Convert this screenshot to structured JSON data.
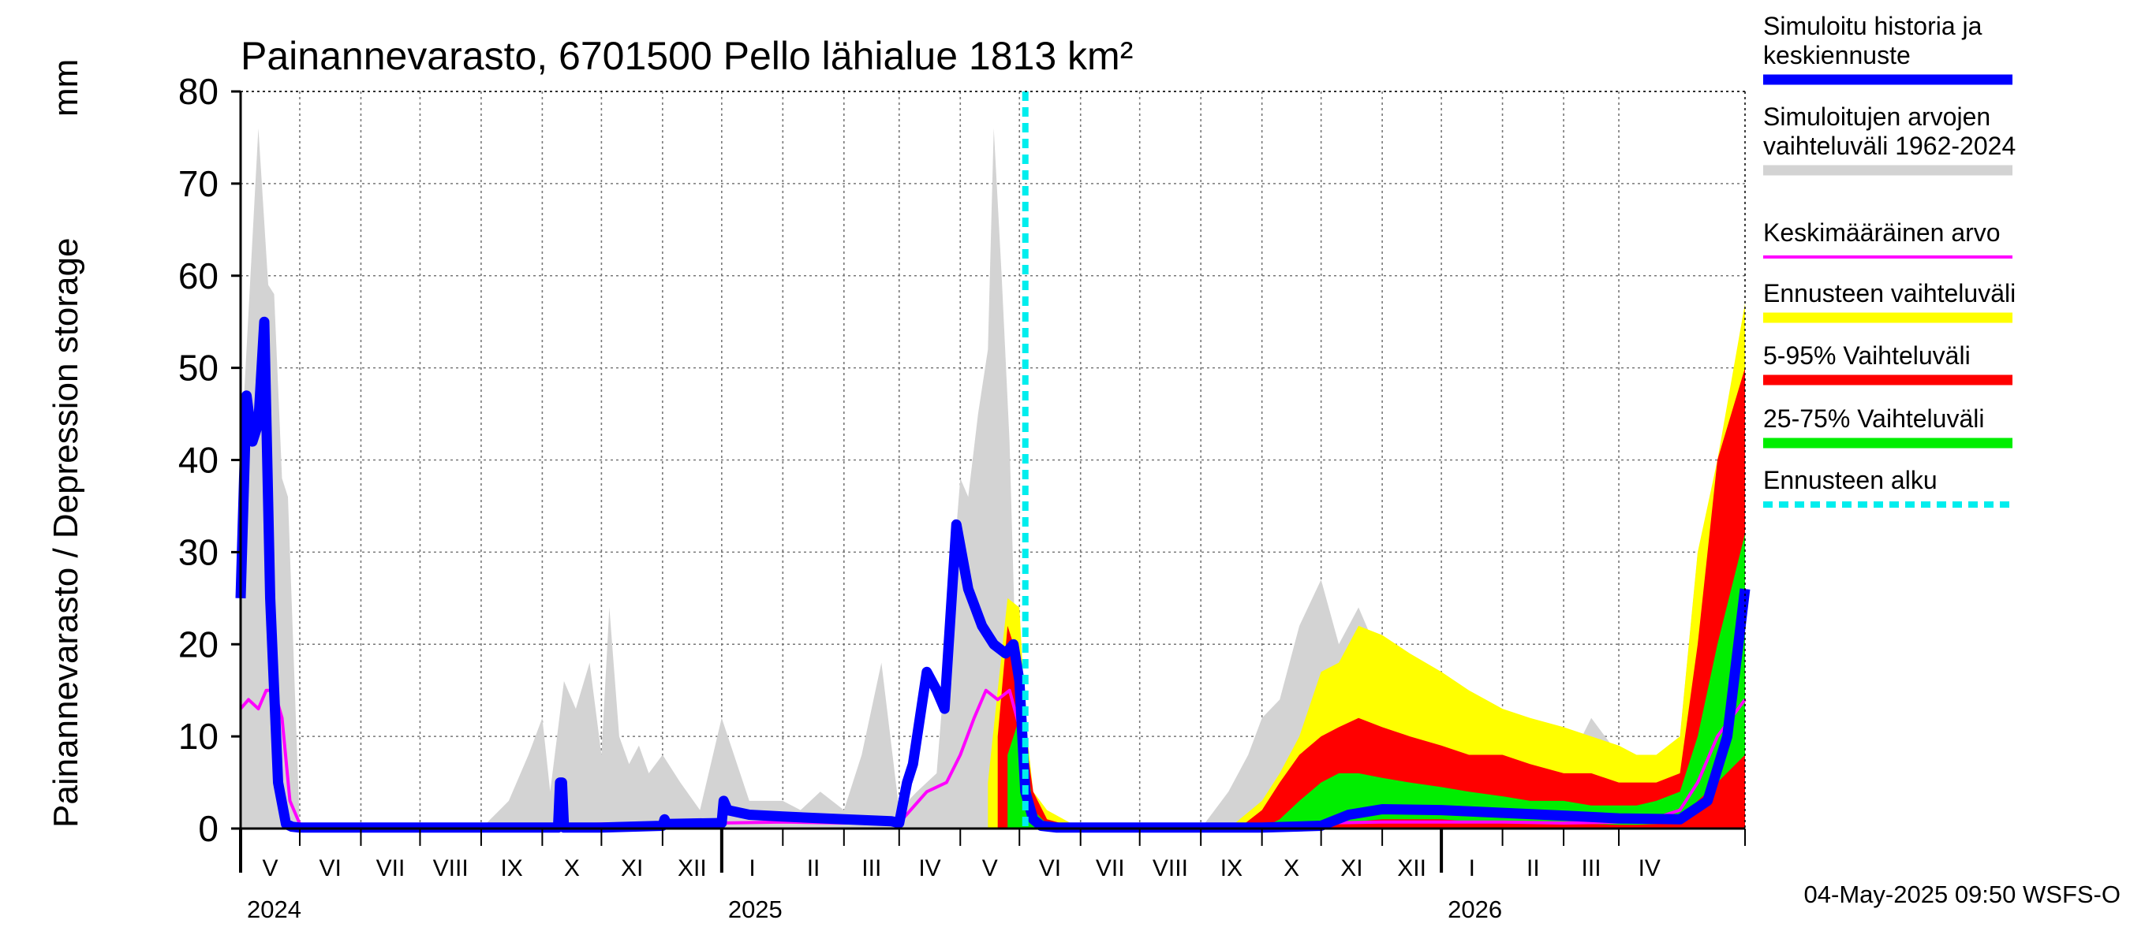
{
  "chart_data": {
    "type": "area",
    "title": "Painannevarasto, 6701500 Pello lähialue 1813 km²",
    "ylabel": "Painannevarasto / Depression storage",
    "yunit": "mm",
    "ylim": [
      0,
      80
    ],
    "yticks": [
      0,
      10,
      20,
      30,
      40,
      50,
      60,
      70,
      80
    ],
    "xlim": [
      "2024-04-01",
      "2026-05-04"
    ],
    "grid": true,
    "legend_position": "right",
    "forecast_start": "2025-05-04",
    "timestamp": "04-May-2025 09:50 WSFS-O",
    "months": [
      {
        "label": "V",
        "start": "2024-04-01",
        "end": "2024-05-01"
      },
      {
        "label": "VI",
        "start": "2024-05-01",
        "end": "2024-06-01"
      },
      {
        "label": "VII",
        "start": "2024-06-01",
        "end": "2024-07-01"
      },
      {
        "label": "VIII",
        "start": "2024-07-01",
        "end": "2024-08-01"
      },
      {
        "label": "IX",
        "start": "2024-08-01",
        "end": "2024-09-01"
      },
      {
        "label": "X",
        "start": "2024-09-01",
        "end": "2024-10-01"
      },
      {
        "label": "XI",
        "start": "2024-10-01",
        "end": "2024-11-01"
      },
      {
        "label": "XII",
        "start": "2024-11-01",
        "end": "2024-12-01"
      },
      {
        "label": "I",
        "start": "2024-12-01",
        "end": "2025-01-01"
      },
      {
        "label": "II",
        "start": "2025-01-01",
        "end": "2025-02-01"
      },
      {
        "label": "III",
        "start": "2025-02-01",
        "end": "2025-03-01"
      },
      {
        "label": "IV",
        "start": "2025-03-01",
        "end": "2025-04-01"
      },
      {
        "label": "V",
        "start": "2025-04-01",
        "end": "2025-05-01"
      },
      {
        "label": "VI",
        "start": "2025-05-01",
        "end": "2025-06-01"
      },
      {
        "label": "VII",
        "start": "2025-06-01",
        "end": "2025-07-01"
      },
      {
        "label": "VIII",
        "start": "2025-07-01",
        "end": "2025-08-01"
      },
      {
        "label": "IX",
        "start": "2025-08-01",
        "end": "2025-09-01"
      },
      {
        "label": "X",
        "start": "2025-09-01",
        "end": "2025-10-01"
      },
      {
        "label": "XI",
        "start": "2025-10-01",
        "end": "2025-11-01"
      },
      {
        "label": "XII",
        "start": "2025-11-01",
        "end": "2025-12-01"
      },
      {
        "label": "I",
        "start": "2025-12-01",
        "end": "2026-01-01"
      },
      {
        "label": "II",
        "start": "2026-01-01",
        "end": "2026-02-01"
      },
      {
        "label": "III",
        "start": "2026-02-01",
        "end": "2026-03-01"
      },
      {
        "label": "IV",
        "start": "2026-03-01",
        "end": "2026-04-01"
      }
    ],
    "years": [
      {
        "label": "2024",
        "date": "2024-04-01"
      },
      {
        "label": "2025",
        "date": "2024-12-01"
      },
      {
        "label": "2026",
        "date": "2025-12-01"
      }
    ],
    "legend": [
      {
        "label": "Simuloitu historia ja keskiennuste",
        "color": "#0000ff",
        "style": "thick"
      },
      {
        "label": "Simuloitujen arvojen vaihteluväli 1962-2024",
        "color": "#d3d3d3",
        "style": "thick"
      },
      {
        "label": "Keskimääräinen arvo",
        "color": "#ff00ff",
        "style": "thin"
      },
      {
        "label": "Ennusteen vaihteluväli",
        "color": "#ffff00",
        "style": "thick"
      },
      {
        "label": "5-95% Vaihteluväli",
        "color": "#ff0000",
        "style": "thick"
      },
      {
        "label": "25-75% Vaihteluväli",
        "color": "#00ee00",
        "style": "thick"
      },
      {
        "label": "Ennusteen alku",
        "color": "#00eeee",
        "style": "dotted"
      }
    ],
    "series": [
      {
        "name": "Simulaatioiden vaihteluväli 1962-2024",
        "kind": "band",
        "color": "#d3d3d3",
        "x": [
          "2024-04-01",
          "2024-04-10",
          "2024-04-15",
          "2024-04-18",
          "2024-04-22",
          "2024-04-25",
          "2024-05-01",
          "2024-05-05",
          "2024-05-10",
          "2024-05-12",
          "2024-05-20",
          "2024-06-01",
          "2024-07-01",
          "2024-08-01",
          "2024-08-15",
          "2024-08-25",
          "2024-09-01",
          "2024-09-05",
          "2024-09-12",
          "2024-09-18",
          "2024-09-25",
          "2024-10-01",
          "2024-10-05",
          "2024-10-10",
          "2024-10-15",
          "2024-10-20",
          "2024-10-25",
          "2024-11-01",
          "2024-11-10",
          "2024-11-20",
          "2024-12-01",
          "2024-12-15",
          "2025-01-01",
          "2025-01-10",
          "2025-01-20",
          "2025-02-01",
          "2025-02-10",
          "2025-02-20",
          "2025-03-01",
          "2025-03-10",
          "2025-03-20",
          "2025-04-01",
          "2025-04-05",
          "2025-04-10",
          "2025-04-15",
          "2025-04-18",
          "2025-04-22",
          "2025-04-26",
          "2025-05-01",
          "2025-05-05",
          "2025-05-10",
          "2025-05-15",
          "2025-05-20",
          "2025-06-01",
          "2025-07-01",
          "2025-08-01",
          "2025-08-15",
          "2025-08-25",
          "2025-09-01",
          "2025-09-10",
          "2025-09-20",
          "2025-10-01",
          "2025-10-10",
          "2025-10-20",
          "2025-11-01",
          "2025-11-10",
          "2025-11-20",
          "2025-12-01",
          "2025-12-15",
          "2026-01-01",
          "2026-01-15",
          "2026-02-01",
          "2026-02-15",
          "2026-03-01",
          "2026-03-10",
          "2026-03-20",
          "2026-04-01",
          "2026-04-10",
          "2026-04-20",
          "2026-05-04"
        ],
        "low": [
          0,
          0,
          0,
          0,
          0,
          0,
          0,
          0,
          0,
          0,
          0,
          0,
          0,
          0,
          0,
          0,
          0,
          0,
          0,
          0,
          0,
          0,
          0,
          0,
          0,
          0,
          0,
          0,
          0,
          0,
          0,
          0,
          0,
          0,
          0,
          0,
          0,
          0,
          0,
          0,
          0,
          0,
          0,
          0,
          0,
          0,
          0,
          0,
          0,
          0,
          0,
          0,
          0,
          0,
          0,
          0,
          0,
          0,
          0,
          0,
          0,
          0,
          0,
          0,
          0,
          0,
          0,
          0,
          0,
          0,
          0,
          0,
          0,
          0,
          0,
          0,
          0,
          0,
          0,
          0
        ],
        "high": [
          40,
          76,
          59,
          58,
          38,
          36,
          0,
          0,
          0,
          0,
          0,
          0,
          0,
          0,
          3,
          8,
          12,
          4,
          16,
          13,
          18,
          8,
          24,
          10,
          7,
          9,
          6,
          8,
          5,
          2,
          12,
          3,
          3,
          2,
          4,
          2,
          8,
          18,
          2,
          4,
          6,
          38,
          36,
          45,
          52,
          76,
          60,
          42,
          4,
          0,
          0,
          0,
          0,
          0,
          0,
          0,
          4,
          8,
          12,
          14,
          22,
          27,
          20,
          24,
          18,
          14,
          10,
          12,
          6,
          3,
          8,
          6,
          12,
          8,
          4,
          2,
          10,
          30,
          28,
          45
        ]
      },
      {
        "name": "Ennusteen vaihteluväli",
        "kind": "band",
        "color": "#ffff00",
        "x": [
          "2025-04-15",
          "2025-04-20",
          "2025-04-25",
          "2025-05-01",
          "2025-05-04",
          "2025-05-08",
          "2025-05-15",
          "2025-06-01",
          "2025-08-15",
          "2025-09-01",
          "2025-09-10",
          "2025-09-20",
          "2025-10-01",
          "2025-10-10",
          "2025-10-20",
          "2025-11-01",
          "2025-11-15",
          "2025-12-01",
          "2025-12-15",
          "2026-01-01",
          "2026-01-15",
          "2026-02-01",
          "2026-02-15",
          "2026-03-01",
          "2026-03-10",
          "2026-03-20",
          "2026-04-01",
          "2026-04-10",
          "2026-04-20",
          "2026-05-04"
        ],
        "low": [
          0,
          0,
          0,
          0,
          0,
          0,
          0,
          0,
          0,
          0,
          0,
          0,
          0,
          0,
          0,
          0,
          0,
          0,
          0,
          0,
          0,
          0,
          0,
          0,
          0,
          0,
          0,
          0,
          0,
          0
        ],
        "high": [
          5,
          15,
          25,
          24,
          12,
          4,
          2,
          0,
          0,
          3,
          6,
          10,
          17,
          18,
          22,
          21,
          19,
          17,
          15,
          13,
          12,
          11,
          10,
          9,
          8,
          8,
          10,
          30,
          40,
          57
        ]
      },
      {
        "name": "5-95% Vaihteluväli",
        "kind": "band",
        "color": "#ff0000",
        "x": [
          "2025-04-20",
          "2025-04-25",
          "2025-05-01",
          "2025-05-04",
          "2025-05-08",
          "2025-05-15",
          "2025-06-01",
          "2025-08-20",
          "2025-09-01",
          "2025-09-10",
          "2025-09-20",
          "2025-10-01",
          "2025-10-10",
          "2025-10-20",
          "2025-11-01",
          "2025-11-15",
          "2025-12-01",
          "2025-12-15",
          "2026-01-01",
          "2026-01-15",
          "2026-02-01",
          "2026-02-15",
          "2026-03-01",
          "2026-03-10",
          "2026-03-20",
          "2026-04-01",
          "2026-04-10",
          "2026-04-20",
          "2026-05-04"
        ],
        "low": [
          0,
          0,
          0,
          0,
          0,
          0,
          0,
          0,
          0,
          0,
          0,
          0,
          0,
          0,
          0,
          0,
          0,
          0,
          0,
          0,
          0,
          0,
          0,
          0,
          0,
          0,
          0,
          0,
          0
        ],
        "high": [
          10,
          22,
          18,
          10,
          4,
          1,
          0,
          0,
          2,
          5,
          8,
          10,
          11,
          12,
          11,
          10,
          9,
          8,
          8,
          7,
          6,
          6,
          5,
          5,
          5,
          6,
          20,
          40,
          50
        ]
      },
      {
        "name": "25-75% Vaihteluväli",
        "kind": "band",
        "color": "#00ee00",
        "x": [
          "2025-04-25",
          "2025-05-01",
          "2025-05-04",
          "2025-05-08",
          "2025-05-15",
          "2025-06-01",
          "2025-09-01",
          "2025-09-10",
          "2025-09-20",
          "2025-10-01",
          "2025-10-10",
          "2025-10-20",
          "2025-11-01",
          "2025-11-15",
          "2025-12-01",
          "2025-12-15",
          "2026-01-01",
          "2026-01-15",
          "2026-02-01",
          "2026-02-15",
          "2026-03-01",
          "2026-03-10",
          "2026-03-20",
          "2026-04-01",
          "2026-04-10",
          "2026-04-20",
          "2026-05-04"
        ],
        "low": [
          0,
          0,
          0,
          0,
          0,
          0,
          0,
          0,
          0,
          0,
          0.5,
          0.8,
          1,
          1,
          1,
          0.8,
          0.7,
          0.6,
          0.5,
          0.5,
          0.4,
          0.4,
          0.5,
          1,
          3,
          5,
          8
        ],
        "high": [
          8,
          12,
          9,
          2,
          0.5,
          0,
          0,
          1,
          3,
          5,
          6,
          6,
          5.5,
          5,
          4.5,
          4,
          3.5,
          3,
          3,
          2.5,
          2.5,
          2.5,
          3,
          4,
          10,
          20,
          32
        ]
      },
      {
        "name": "Keskimääräinen arvo",
        "kind": "line",
        "color": "#ff00ff",
        "x": [
          "2024-04-01",
          "2024-04-05",
          "2024-04-10",
          "2024-04-14",
          "2024-04-18",
          "2024-04-22",
          "2024-04-26",
          "2024-05-01",
          "2024-05-05",
          "2024-06-01",
          "2024-08-01",
          "2024-09-01",
          "2024-10-01",
          "2024-11-01",
          "2024-12-01",
          "2025-01-01",
          "2025-02-01",
          "2025-03-01",
          "2025-03-15",
          "2025-03-25",
          "2025-04-01",
          "2025-04-08",
          "2025-04-14",
          "2025-04-20",
          "2025-04-26",
          "2025-05-01",
          "2025-05-05",
          "2025-05-10",
          "2025-05-15",
          "2025-06-01",
          "2025-08-01",
          "2025-09-01",
          "2025-10-01",
          "2025-11-01",
          "2025-12-01",
          "2026-01-01",
          "2026-02-01",
          "2026-03-01",
          "2026-03-15",
          "2026-04-01",
          "2026-04-10",
          "2026-04-20",
          "2026-05-04"
        ],
        "values": [
          13,
          14,
          13,
          15,
          15,
          12,
          3,
          0.5,
          0.3,
          0.2,
          0.2,
          0.3,
          0.5,
          0.6,
          0.6,
          0.7,
          0.6,
          0.6,
          4,
          5,
          8,
          12,
          15,
          14,
          15,
          11,
          3,
          0.5,
          0.3,
          0.2,
          0.2,
          0.3,
          0.6,
          0.7,
          0.7,
          0.7,
          0.6,
          0.7,
          0.8,
          2,
          5,
          10,
          14
        ]
      },
      {
        "name": "Simuloitu historia ja keskiennuste",
        "kind": "line",
        "color": "#0000ff",
        "x": [
          "2024-04-01",
          "2024-04-04",
          "2024-04-07",
          "2024-04-10",
          "2024-04-13",
          "2024-04-16",
          "2024-04-20",
          "2024-04-24",
          "2024-04-27",
          "2024-05-01",
          "2024-06-01",
          "2024-08-01",
          "2024-09-01",
          "2024-09-09",
          "2024-09-10",
          "2024-09-11",
          "2024-09-12",
          "2024-10-01",
          "2024-11-01",
          "2024-11-02",
          "2024-11-03",
          "2024-12-01",
          "2024-12-02",
          "2024-12-04",
          "2024-12-15",
          "2025-01-01",
          "2025-02-01",
          "2025-02-25",
          "2025-03-01",
          "2025-03-05",
          "2025-03-08",
          "2025-03-15",
          "2025-03-20",
          "2025-03-24",
          "2025-03-30",
          "2025-04-05",
          "2025-04-12",
          "2025-04-18",
          "2025-04-24",
          "2025-04-28",
          "2025-05-01",
          "2025-05-04",
          "2025-05-08",
          "2025-05-12",
          "2025-05-20",
          "2025-06-01",
          "2025-08-01",
          "2025-09-01",
          "2025-10-01",
          "2025-10-15",
          "2025-11-01",
          "2025-12-01",
          "2026-01-01",
          "2026-02-01",
          "2026-03-01",
          "2026-04-01",
          "2026-04-15",
          "2026-04-25",
          "2026-05-04"
        ],
        "values": [
          25,
          47,
          42,
          44,
          55,
          25,
          5,
          0.5,
          0.2,
          0.1,
          0.1,
          0.1,
          0.1,
          0.1,
          5,
          5,
          0.1,
          0.1,
          0.3,
          1,
          0.5,
          0.6,
          3,
          2,
          1.5,
          1.3,
          1,
          0.8,
          0.6,
          5,
          7,
          17,
          15,
          13,
          33,
          26,
          22,
          20,
          19,
          20,
          16,
          4,
          1,
          0.3,
          0.1,
          0.1,
          0.1,
          0.1,
          0.3,
          1.5,
          2.1,
          2.0,
          1.7,
          1.4,
          1.1,
          1.0,
          3,
          10,
          26
        ]
      }
    ]
  }
}
